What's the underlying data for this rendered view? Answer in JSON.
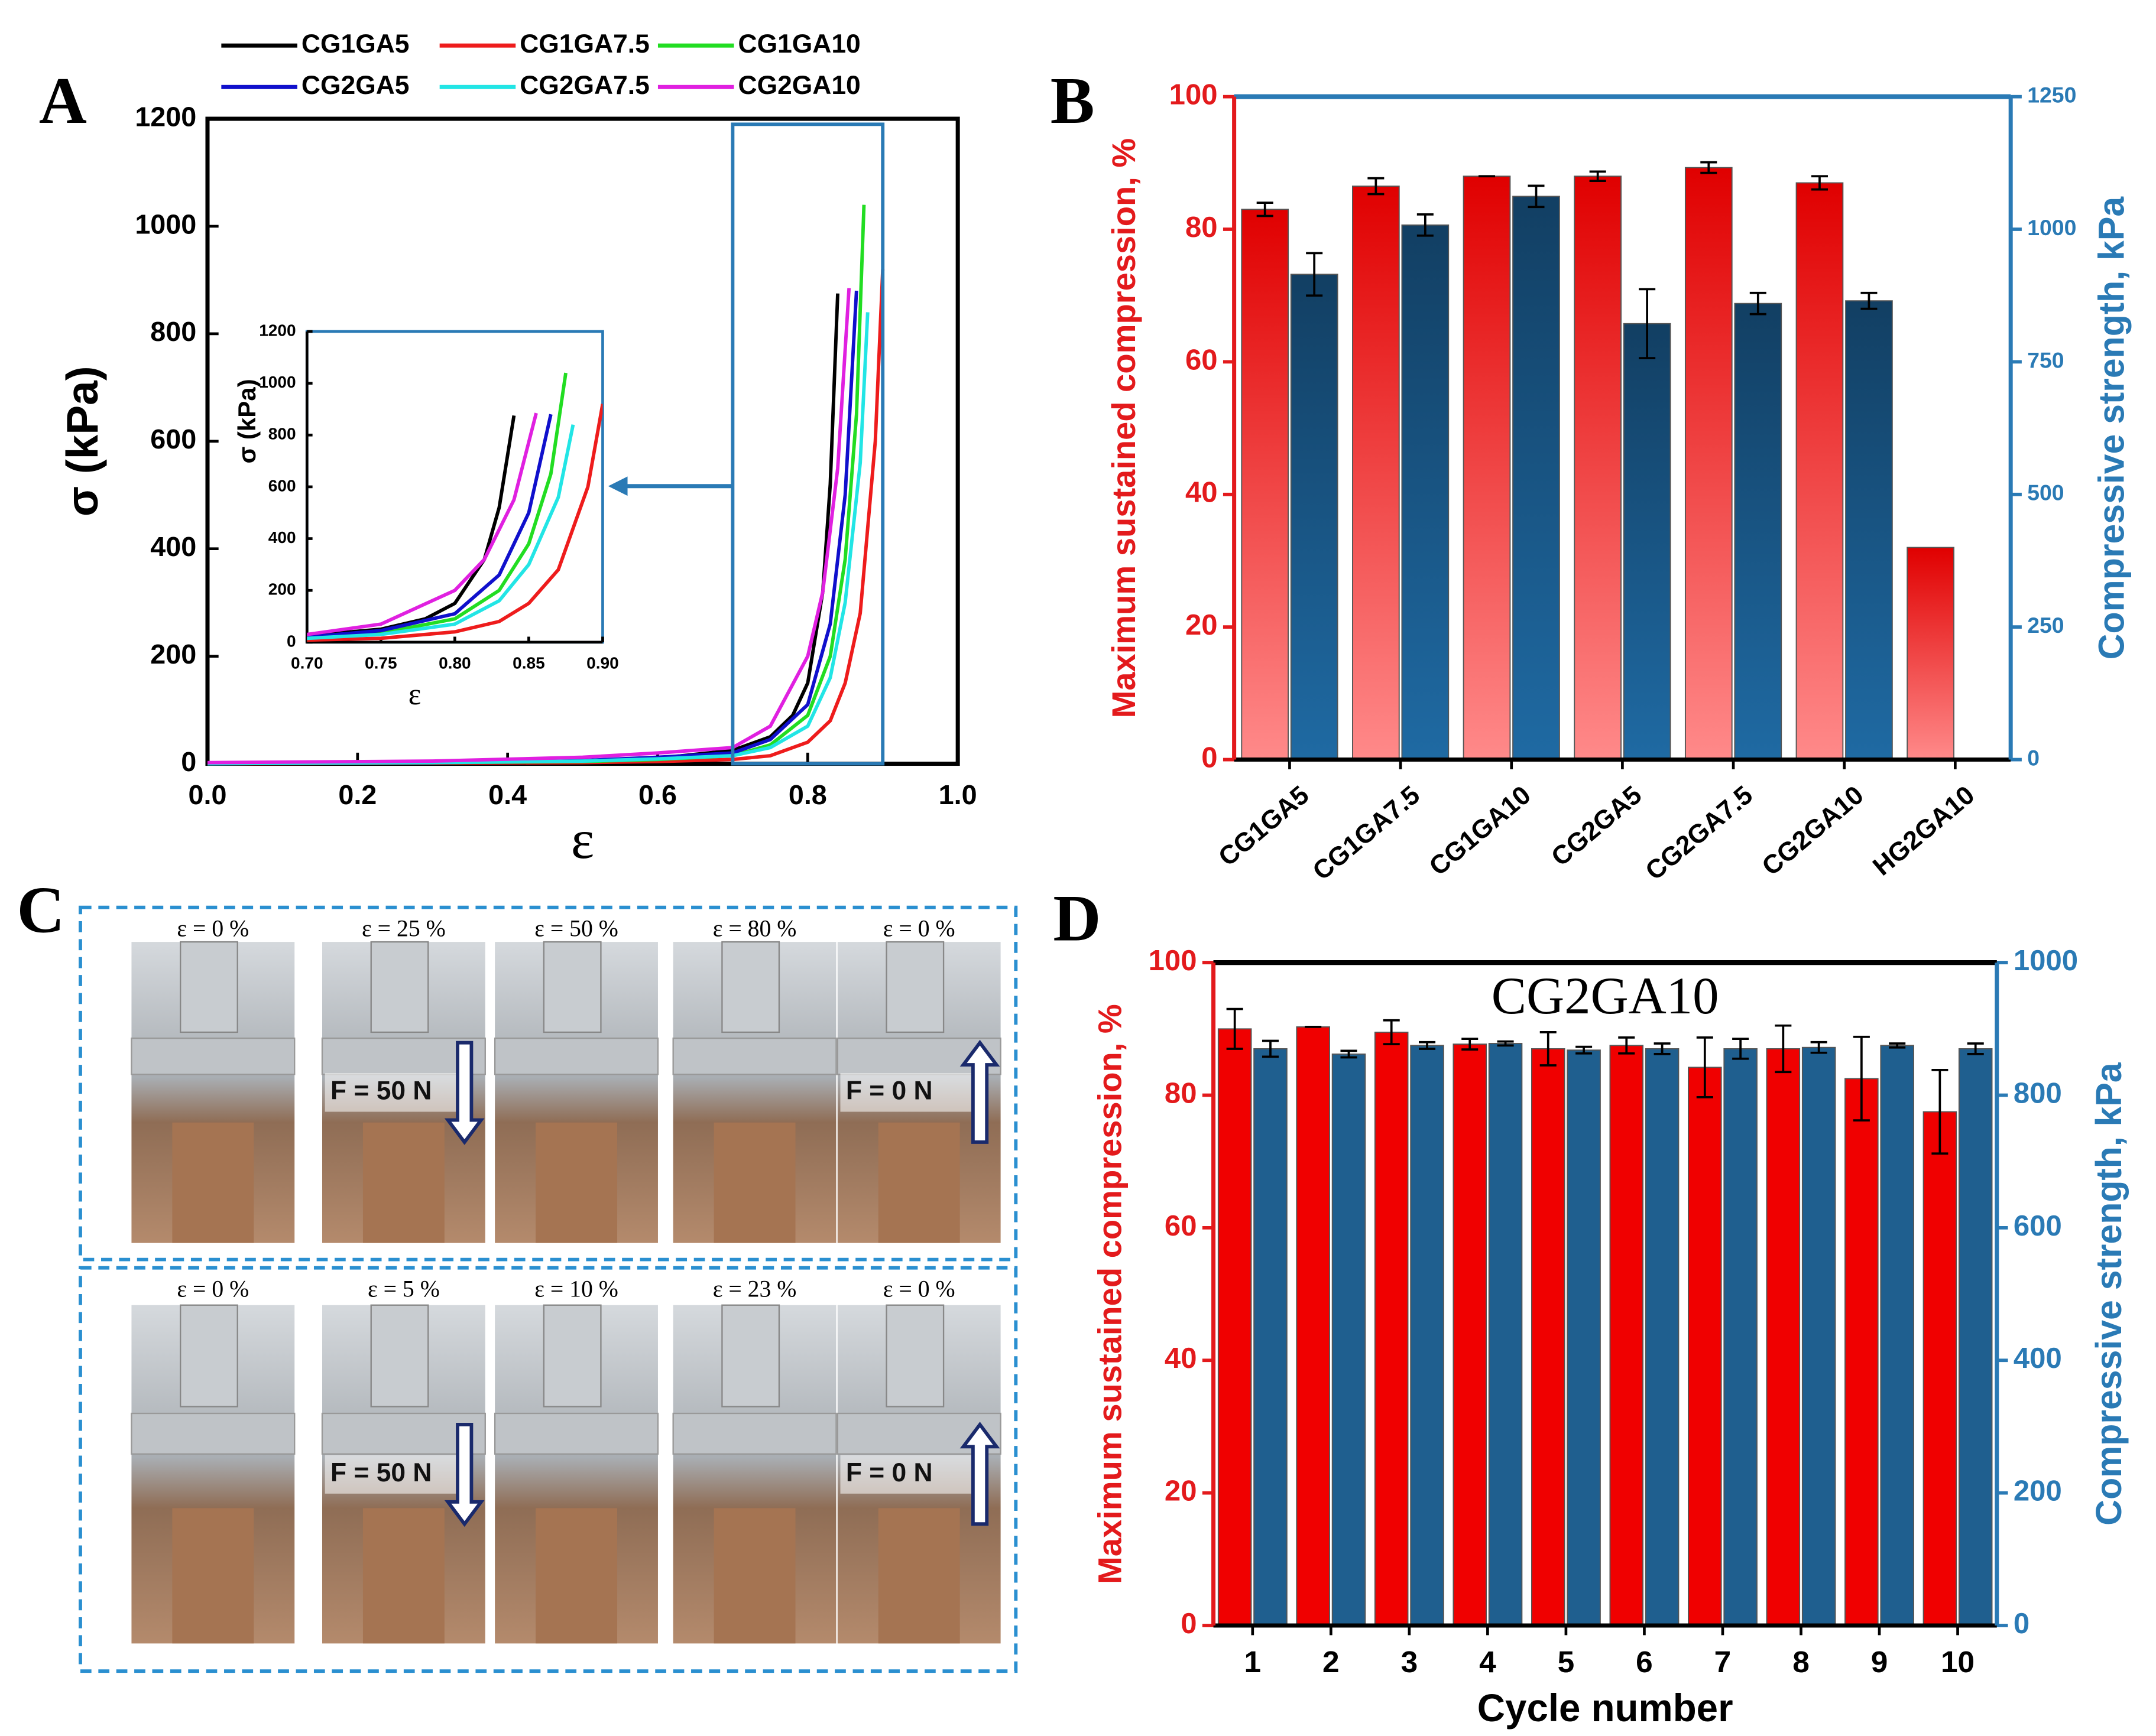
{
  "panel_labels": [
    "A",
    "B",
    "C",
    "D"
  ],
  "photos": [
    [
      {
        "strain": "ε = 0 %"
      },
      {
        "strain": "ε = 25 %",
        "force": "F = 50 N"
      },
      {
        "strain": "ε = 50 %"
      },
      {
        "strain": "ε = 80 %"
      },
      {
        "strain": "ε = 0 %",
        "force": "F = 0 N"
      }
    ],
    [
      {
        "strain": "ε = 0 %"
      },
      {
        "strain": "ε = 5 %",
        "force": "F = 50 N"
      },
      {
        "strain": "ε = 10 %"
      },
      {
        "strain": "ε = 23 %"
      },
      {
        "strain": "ε = 0 %",
        "force": "F = 0 N"
      }
    ]
  ],
  "chart_data": [
    {
      "type": "line",
      "xlabel": "ε",
      "ylabel": "σ (kPa)",
      "xlim": [
        0,
        1
      ],
      "xticks": [
        {
          "value": 0,
          "label": "0.0"
        },
        0.2,
        0.4,
        0.6,
        0.8,
        {
          "value": 1,
          "label": "1.0"
        }
      ],
      "ylim": [
        0,
        1200
      ],
      "yticks": [
        0,
        200,
        400,
        600,
        800,
        1000,
        1200
      ],
      "series": [
        {
          "name": "CG1GA5",
          "color": "#000000",
          "x": [
            0,
            0.3,
            0.5,
            0.6,
            0.7,
            0.75,
            0.78,
            0.8,
            0.82,
            0.83,
            0.84
          ],
          "values": [
            0,
            2,
            5,
            10,
            25,
            50,
            90,
            150,
            320,
            520,
            875
          ]
        },
        {
          "name": "CG1GA7.5",
          "color": "#ee1c1c",
          "x": [
            0,
            0.3,
            0.5,
            0.6,
            0.7,
            0.75,
            0.8,
            0.83,
            0.85,
            0.87,
            0.89,
            0.9
          ],
          "values": [
            0,
            1,
            2,
            4,
            8,
            15,
            40,
            80,
            150,
            280,
            600,
            920
          ]
        },
        {
          "name": "CG1GA10",
          "color": "#22dd22",
          "x": [
            0,
            0.3,
            0.5,
            0.6,
            0.7,
            0.75,
            0.8,
            0.83,
            0.85,
            0.865,
            0.875
          ],
          "values": [
            0,
            2,
            4,
            8,
            15,
            35,
            90,
            200,
            380,
            650,
            1040
          ]
        },
        {
          "name": "CG2GA5",
          "color": "#1010cc",
          "x": [
            0,
            0.3,
            0.5,
            0.6,
            0.7,
            0.75,
            0.8,
            0.83,
            0.85,
            0.865
          ],
          "values": [
            0,
            2,
            6,
            12,
            20,
            45,
            110,
            260,
            500,
            880
          ]
        },
        {
          "name": "CG2GA7.5",
          "color": "#22e5e5",
          "x": [
            0,
            0.3,
            0.5,
            0.6,
            0.7,
            0.75,
            0.8,
            0.83,
            0.85,
            0.87,
            0.88
          ],
          "values": [
            0,
            2,
            5,
            9,
            15,
            30,
            70,
            160,
            300,
            560,
            840
          ]
        },
        {
          "name": "CG2GA10",
          "color": "#e020e0",
          "x": [
            0,
            0.3,
            0.5,
            0.6,
            0.7,
            0.75,
            0.8,
            0.82,
            0.84,
            0.855
          ],
          "values": [
            2,
            5,
            12,
            20,
            30,
            70,
            200,
            320,
            550,
            885
          ]
        }
      ],
      "inset": {
        "xlabel": "ε",
        "ylabel": "σ (kPa)",
        "xlim": [
          0.7,
          0.9
        ],
        "xticks": [
          {
            "value": 0.7,
            "label": "0.70"
          },
          {
            "value": 0.75,
            "label": "0.75"
          },
          {
            "value": 0.8,
            "label": "0.80"
          },
          {
            "value": 0.85,
            "label": "0.85"
          },
          {
            "value": 0.9,
            "label": "0.90"
          }
        ],
        "ylim": [
          0,
          1200
        ],
        "yticks": [
          0,
          200,
          400,
          600,
          800,
          1000,
          1200
        ]
      }
    },
    {
      "type": "bar",
      "ylabel": "Maximum sustained compression, %",
      "y2label": "Compressive strength, kPa",
      "categories": [
        "CG1GA5",
        "CG1GA7.5",
        "CG1GA10",
        "CG2GA5",
        "CG2GA7.5",
        "CG2GA10",
        "HG2GA10"
      ],
      "ylim": [
        0,
        100
      ],
      "yticks": [
        0,
        20,
        40,
        60,
        80,
        100
      ],
      "y2lim": [
        0,
        1250
      ],
      "y2ticks": [
        0,
        250,
        500,
        750,
        1000,
        1250
      ],
      "series": [
        {
          "color": "#e31a1c",
          "values": [
            83,
            86.5,
            88,
            88,
            89.3,
            87,
            32
          ],
          "errors": [
            1,
            1.2,
            0,
            0.7,
            0.8,
            1,
            null
          ]
        },
        {
          "color": "#1f5f8f",
          "axis": "y2",
          "values": [
            915,
            1008,
            1062,
            822,
            860,
            865,
            null
          ],
          "errors": [
            40,
            20,
            20,
            65,
            20,
            15,
            null
          ]
        }
      ]
    },
    {
      "type": "bar",
      "title": "CG2GA10",
      "xlabel": "Cycle number",
      "ylabel": "Maximum sustained compression, %",
      "y2label": "Compressive strength, kPa",
      "categories": [
        "1",
        "2",
        "3",
        "4",
        "5",
        "6",
        "7",
        "8",
        "9",
        "10"
      ],
      "ylim": [
        0,
        100
      ],
      "yticks": [
        0,
        20,
        40,
        60,
        80,
        100
      ],
      "y2lim": [
        0,
        1000
      ],
      "y2ticks": [
        0,
        200,
        400,
        600,
        800,
        1000
      ],
      "series": [
        {
          "color": "#f00000",
          "values": [
            90,
            90.3,
            89.5,
            87.7,
            87,
            87.5,
            84.2,
            87,
            82.5,
            77.5
          ],
          "errors": [
            3,
            0,
            1.8,
            0.8,
            2.5,
            1.2,
            4.5,
            3.5,
            6.3,
            6.3
          ]
        },
        {
          "color": "#1f5f8f",
          "axis": "y2",
          "values": [
            870,
            862,
            875,
            878,
            868,
            870,
            870,
            872,
            875,
            870
          ],
          "errors": [
            12,
            5,
            5,
            3,
            5,
            8,
            15,
            8,
            3,
            8
          ]
        }
      ]
    }
  ]
}
